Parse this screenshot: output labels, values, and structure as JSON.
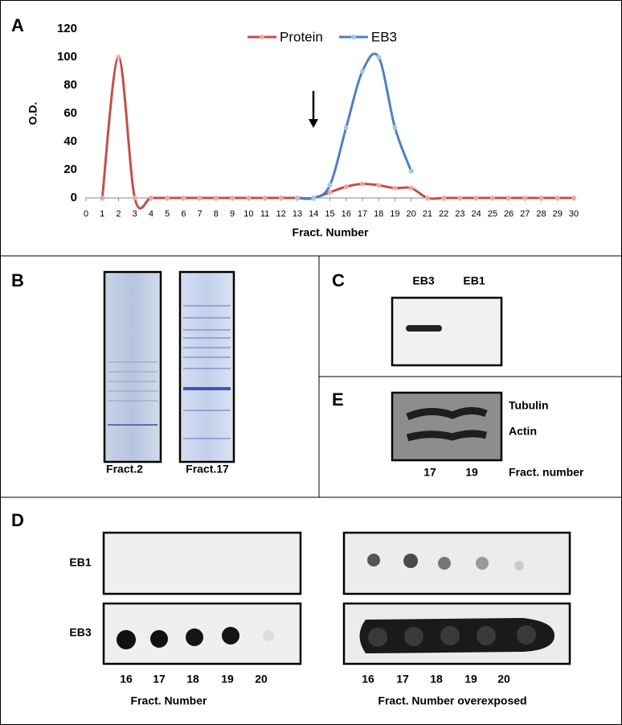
{
  "chart_data": {
    "type": "line",
    "x_label": "Fract. Number",
    "y_label": "O.D.",
    "xlim": [
      0,
      30
    ],
    "ylim": [
      0,
      120
    ],
    "xticks": [
      0,
      1,
      2,
      3,
      4,
      5,
      6,
      7,
      8,
      9,
      10,
      11,
      12,
      13,
      14,
      15,
      16,
      17,
      18,
      19,
      20,
      21,
      22,
      23,
      24,
      25,
      26,
      27,
      28,
      29,
      30
    ],
    "yticks": [
      0,
      20,
      40,
      60,
      80,
      100,
      120
    ],
    "legend": "top",
    "series": [
      {
        "name": "Protein",
        "color": "#c0504d",
        "x": [
          1,
          2,
          3,
          4,
          5,
          6,
          7,
          8,
          9,
          10,
          11,
          12,
          13,
          14,
          15,
          16,
          17,
          18,
          19,
          20,
          21,
          22,
          23,
          24,
          25,
          26,
          27,
          28,
          29,
          30
        ],
        "values": [
          0,
          100,
          0,
          0,
          0,
          0,
          0,
          0,
          0,
          0,
          0,
          0,
          0,
          0,
          4,
          8,
          10,
          9,
          7,
          7,
          0,
          0,
          0,
          0,
          0,
          0,
          0,
          0,
          0,
          0
        ]
      },
      {
        "name": "EB3",
        "color": "#4f81bd",
        "x": [
          13,
          14,
          15,
          16,
          17,
          18,
          19,
          20
        ],
        "values": [
          0,
          0,
          9,
          50,
          90,
          100,
          50,
          19
        ]
      }
    ]
  },
  "panel_labels": {
    "a": "A",
    "b": "B",
    "c": "C",
    "d": "D",
    "e": "E"
  },
  "panel_b": {
    "lanes": [
      "Fract.2",
      "Fract.17"
    ]
  },
  "panel_c": {
    "lanes": [
      "EB3",
      "EB1"
    ]
  },
  "panel_e": {
    "bands": [
      "Tubulin",
      "Actin"
    ],
    "lanes": [
      "17",
      "19"
    ],
    "axis_label": "Fract. number"
  },
  "panel_d": {
    "rows": [
      "EB1",
      "EB3"
    ],
    "lanes": [
      "16",
      "17",
      "18",
      "19",
      "20"
    ],
    "left_label": "Fract. Number",
    "right_label": "Fract. Number overexposed"
  }
}
